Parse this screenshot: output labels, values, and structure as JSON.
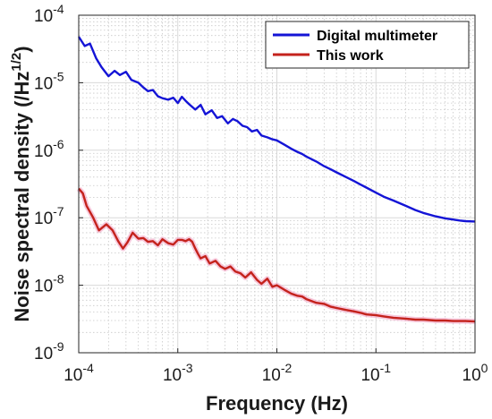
{
  "chart_data": {
    "type": "line",
    "xscale": "log",
    "yscale": "log",
    "xlim": [
      0.0001,
      1
    ],
    "ylim": [
      1e-09,
      0.0001
    ],
    "xlabel": "Frequency (Hz)",
    "ylabel": "Noise spectral density (/Hz",
    "ylabel_sup": "1/2",
    "ylabel_close": ")",
    "x_ticks": [
      {
        "value": 0.0001,
        "base": "10",
        "exp": "-4"
      },
      {
        "value": 0.001,
        "base": "10",
        "exp": "-3"
      },
      {
        "value": 0.01,
        "base": "10",
        "exp": "-2"
      },
      {
        "value": 0.1,
        "base": "10",
        "exp": "-1"
      },
      {
        "value": 1,
        "base": "10",
        "exp": "0"
      }
    ],
    "y_ticks": [
      {
        "value": 0.0001,
        "base": "10",
        "exp": "-4"
      },
      {
        "value": 1e-05,
        "base": "10",
        "exp": "-5"
      },
      {
        "value": 1e-06,
        "base": "10",
        "exp": "-6"
      },
      {
        "value": 1e-07,
        "base": "10",
        "exp": "-7"
      },
      {
        "value": 1e-08,
        "base": "10",
        "exp": "-8"
      },
      {
        "value": 1e-09,
        "base": "10",
        "exp": "-9"
      }
    ],
    "grid": true,
    "minor_grid": true,
    "legend_position": "top-right",
    "series": [
      {
        "name": "Digital multimeter",
        "color": "#1414d6",
        "x": [
          0.0001,
          0.000115,
          0.00013,
          0.00015,
          0.00017,
          0.0002,
          0.00023,
          0.00026,
          0.0003,
          0.00034,
          0.0004,
          0.00045,
          0.0005,
          0.00056,
          0.00063,
          0.0007,
          0.0008,
          0.0009,
          0.001,
          0.0011,
          0.0012,
          0.0013,
          0.0015,
          0.0017,
          0.0019,
          0.0022,
          0.0025,
          0.0028,
          0.0032,
          0.0036,
          0.004,
          0.0045,
          0.005,
          0.0056,
          0.0063,
          0.007,
          0.008,
          0.009,
          0.01,
          0.012,
          0.014,
          0.016,
          0.018,
          0.02,
          0.025,
          0.03,
          0.035,
          0.04,
          0.05,
          0.06,
          0.07,
          0.08,
          0.1,
          0.12,
          0.15,
          0.2,
          0.25,
          0.3,
          0.4,
          0.5,
          0.6,
          0.7,
          0.8,
          1
        ],
        "y": [
          4.8e-05,
          3.5e-05,
          3.8e-05,
          2.3e-05,
          1.7e-05,
          1.25e-05,
          1.5e-05,
          1.3e-05,
          1.45e-05,
          1.1e-05,
          1e-05,
          8.5e-06,
          7.5e-06,
          7.8e-06,
          6.3e-06,
          5.9e-06,
          5.6e-06,
          6e-06,
          5e-06,
          6.2e-06,
          5.4e-06,
          4.8e-06,
          4e-06,
          4.7e-06,
          3.4e-06,
          3.9e-06,
          3e-06,
          3.2e-06,
          2.5e-06,
          2.9e-06,
          2.7e-06,
          2.3e-06,
          2.2e-06,
          1.9e-06,
          2e-06,
          1.65e-06,
          1.55e-06,
          1.45e-06,
          1.4e-06,
          1.2e-06,
          1.05e-06,
          9.5e-07,
          8.8e-07,
          8e-07,
          6.8e-07,
          5.8e-07,
          5.2e-07,
          4.7e-07,
          4e-07,
          3.5e-07,
          3.1e-07,
          2.8e-07,
          2.35e-07,
          2.05e-07,
          1.8e-07,
          1.5e-07,
          1.3e-07,
          1.18e-07,
          1.05e-07,
          9.8e-08,
          9.4e-08,
          9.1e-08,
          8.9e-08,
          8.8e-08
        ]
      },
      {
        "name": "This work",
        "color": "#c4221c",
        "x": [
          0.0001,
          0.00011,
          0.00012,
          0.00014,
          0.00016,
          0.00019,
          0.00022,
          0.00025,
          0.00028,
          0.00031,
          0.00035,
          0.0004,
          0.00045,
          0.0005,
          0.00056,
          0.00063,
          0.0007,
          0.0008,
          0.0009,
          0.001,
          0.0011,
          0.0012,
          0.0013,
          0.0014,
          0.0015,
          0.0016,
          0.0017,
          0.0019,
          0.0021,
          0.0024,
          0.0027,
          0.003,
          0.0034,
          0.0038,
          0.0043,
          0.0048,
          0.0055,
          0.0063,
          0.007,
          0.008,
          0.009,
          0.01,
          0.012,
          0.014,
          0.016,
          0.018,
          0.02,
          0.025,
          0.03,
          0.035,
          0.04,
          0.05,
          0.06,
          0.07,
          0.08,
          0.1,
          0.12,
          0.15,
          0.2,
          0.25,
          0.3,
          0.4,
          0.5,
          0.6,
          0.8,
          1
        ],
        "y": [
          2.7e-07,
          2.3e-07,
          1.5e-07,
          1e-07,
          6.5e-08,
          8e-08,
          6.5e-08,
          4.5e-08,
          3.5e-08,
          4.3e-08,
          6e-08,
          4.9e-08,
          5e-08,
          4.4e-08,
          4.5e-08,
          3.9e-08,
          4.8e-08,
          4.2e-08,
          4e-08,
          4.7e-08,
          4.7e-08,
          4.5e-08,
          4.8e-08,
          4.4e-08,
          3.5e-08,
          2.9e-08,
          2.5e-08,
          2.7e-08,
          2.1e-08,
          2.3e-08,
          1.9e-08,
          1.75e-08,
          1.9e-08,
          1.6e-08,
          1.5e-08,
          1.3e-08,
          1.55e-08,
          1.2e-08,
          1.05e-08,
          1.25e-08,
          9.5e-09,
          1e-08,
          8.5e-09,
          7.5e-09,
          7e-09,
          6.8e-09,
          6.2e-09,
          5.5e-09,
          5.3e-09,
          4.8e-09,
          4.6e-09,
          4.3e-09,
          4.1e-09,
          3.9e-09,
          3.7e-09,
          3.6e-09,
          3.45e-09,
          3.3e-09,
          3.2e-09,
          3.1e-09,
          3.1e-09,
          3e-09,
          3e-09,
          2.95e-09,
          2.95e-09,
          2.9e-09
        ]
      }
    ]
  }
}
